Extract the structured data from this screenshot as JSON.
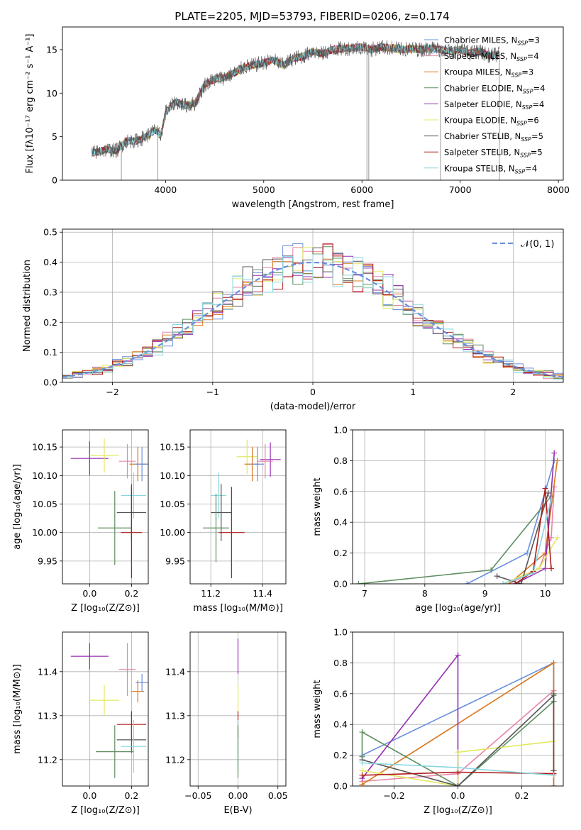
{
  "figure_title": "PLATE=2205, MJD=53793, FIBERID=0206, z=0.174",
  "colors": [
    "#6a8fdc",
    "#f08590",
    "#d9781f",
    "#98a8a0",
    "#5e8e60",
    "#952fb1",
    "#e3e860",
    "#555555",
    "#b01c1c",
    "#88d6df"
  ],
  "models": [
    {
      "name": "Chabrier MILES",
      "nssp": "3",
      "color": "#6a8fdc"
    },
    {
      "name": "Salpeter MILES",
      "nssp": "4",
      "color": "#e884a8"
    },
    {
      "name": "Kroupa MILES",
      "nssp": "3",
      "color": "#d9781f"
    },
    {
      "name": "Chabrier ELODIE",
      "nssp": "4",
      "color": "#5e8e60"
    },
    {
      "name": "Salpeter ELODIE",
      "nssp": "4",
      "color": "#952fb1"
    },
    {
      "name": "Kroupa ELODIE",
      "nssp": "6",
      "color": "#e3e860"
    },
    {
      "name": "Chabrier STELIB",
      "nssp": "5",
      "color": "#555555"
    },
    {
      "name": "Salpeter STELIB",
      "nssp": "5",
      "color": "#b01c1c"
    },
    {
      "name": "Kroupa STELIB",
      "nssp": "4",
      "color": "#88d6df"
    }
  ],
  "chart_data": [
    {
      "id": "spectrum",
      "type": "line",
      "xlabel": "wavelength [Angstrom, rest frame]",
      "ylabel": "Flux [fλ10⁻¹⁷ erg cm⁻² s⁻¹ A⁻¹]",
      "xlim": [
        2950,
        8050
      ],
      "ylim": [
        0,
        17.6
      ],
      "xticks": [
        4000,
        5000,
        6000,
        7000,
        8000
      ],
      "yticks": [
        0,
        5,
        10,
        15
      ],
      "data_color": "#555555",
      "x": [
        3250,
        3400,
        3500,
        3600,
        3700,
        3800,
        3900,
        3950,
        4000,
        4100,
        4200,
        4300,
        4400,
        4500,
        4600,
        4700,
        4800,
        4900,
        5000,
        5100,
        5200,
        5300,
        5400,
        5500,
        5600,
        5700,
        5800,
        5900,
        6000,
        6100,
        6200,
        6300,
        6400,
        6500,
        6600,
        6700,
        6800,
        6900,
        7000,
        7100,
        7200,
        7300,
        7400
      ],
      "y": [
        3.1,
        3.5,
        3.4,
        4.5,
        4.5,
        5.0,
        5.8,
        5.0,
        7.8,
        9.0,
        8.6,
        8.8,
        11.0,
        11.6,
        11.8,
        12.3,
        13.0,
        13.2,
        13.5,
        13.8,
        13.2,
        14.0,
        14.2,
        14.8,
        14.5,
        15.0,
        15.1,
        15.2,
        15.3,
        15.0,
        15.3,
        15.2,
        15.0,
        15.1,
        15.0,
        15.2,
        15.0,
        14.8,
        15.0,
        14.6,
        14.8,
        14.3,
        14.5
      ],
      "legend": "top-right"
    },
    {
      "id": "residuals",
      "type": "line",
      "xlabel": "(data-model)/error",
      "ylabel": "Normed distribution",
      "xlim": [
        -2.5,
        2.5
      ],
      "ylim": [
        0,
        0.51
      ],
      "xticks": [
        -2,
        -1,
        0,
        1,
        2
      ],
      "yticks": [
        0.0,
        0.1,
        0.2,
        0.3,
        0.4,
        0.5
      ],
      "grid": true,
      "legend": "top-right",
      "normal_label": "𝒩(0, 1)",
      "normal_color": "#6a8fdc",
      "hist_bins": 50
    },
    {
      "id": "age_vs_z",
      "type": "scatter",
      "xlabel": "Z [log₁₀(Z/Z⊙)]",
      "ylabel": "age  [log₁₀(age/yr)]",
      "xlim": [
        -0.13,
        0.28
      ],
      "ylim": [
        9.91,
        10.18
      ],
      "xticks": [
        0.0,
        0.2
      ],
      "yticks": [
        9.95,
        10.0,
        10.05,
        10.1,
        10.15
      ],
      "grid": true,
      "points": [
        {
          "x": 0.0,
          "y": 10.13,
          "ex": 0.09,
          "ey": 0.03,
          "color": "#952fb1"
        },
        {
          "x": 0.07,
          "y": 10.135,
          "ex": 0.07,
          "ey": 0.03,
          "color": "#e3e860"
        },
        {
          "x": 0.18,
          "y": 10.125,
          "ex": 0.04,
          "ey": 0.03,
          "color": "#e884a8"
        },
        {
          "x": 0.23,
          "y": 10.12,
          "ex": 0.04,
          "ey": 0.03,
          "color": "#d9781f"
        },
        {
          "x": 0.25,
          "y": 10.12,
          "ex": 0.03,
          "ey": 0.03,
          "color": "#6a8fdc"
        },
        {
          "x": 0.21,
          "y": 10.065,
          "ex": 0.06,
          "ey": 0.04,
          "color": "#88d6df"
        },
        {
          "x": 0.2,
          "y": 10.035,
          "ex": 0.07,
          "ey": 0.05,
          "color": "#555555"
        },
        {
          "x": 0.12,
          "y": 10.008,
          "ex": 0.08,
          "ey": 0.065,
          "color": "#5e8e60"
        },
        {
          "x": 0.2,
          "y": 10.0,
          "ex": 0.05,
          "ey": 0.08,
          "color": "#b01c1c"
        }
      ]
    },
    {
      "id": "age_vs_mass",
      "type": "scatter",
      "xlabel": "mass [log₁₀(M/M⊙)]",
      "ylabel": "",
      "xlim": [
        11.12,
        11.49
      ],
      "ylim": [
        9.91,
        10.18
      ],
      "xticks": [
        11.2,
        11.4
      ],
      "yticks": [
        9.95,
        10.0,
        10.05,
        10.1,
        10.15
      ],
      "grid": true,
      "points": [
        {
          "x": 11.43,
          "y": 10.128,
          "ex": 0.04,
          "ey": 0.03,
          "color": "#952fb1"
        },
        {
          "x": 11.34,
          "y": 10.133,
          "ex": 0.04,
          "ey": 0.03,
          "color": "#e3e860"
        },
        {
          "x": 11.41,
          "y": 10.125,
          "ex": 0.03,
          "ey": 0.03,
          "color": "#e884a8"
        },
        {
          "x": 11.36,
          "y": 10.12,
          "ex": 0.03,
          "ey": 0.03,
          "color": "#d9781f"
        },
        {
          "x": 11.38,
          "y": 10.12,
          "ex": 0.025,
          "ey": 0.03,
          "color": "#6a8fdc"
        },
        {
          "x": 11.23,
          "y": 10.065,
          "ex": 0.03,
          "ey": 0.04,
          "color": "#88d6df"
        },
        {
          "x": 11.24,
          "y": 10.035,
          "ex": 0.04,
          "ey": 0.05,
          "color": "#555555"
        },
        {
          "x": 11.22,
          "y": 10.008,
          "ex": 0.05,
          "ey": 0.06,
          "color": "#5e8e60"
        },
        {
          "x": 11.28,
          "y": 10.0,
          "ex": 0.05,
          "ey": 0.08,
          "color": "#b01c1c"
        }
      ]
    },
    {
      "id": "weight_vs_age",
      "type": "line",
      "xlabel": "age  [log₁₀(age/yr)]",
      "ylabel": "mass weight",
      "xlim": [
        6.8,
        10.3
      ],
      "ylim": [
        0,
        1.0
      ],
      "xticks": [
        7,
        8,
        9,
        10
      ],
      "yticks": [
        0.0,
        0.2,
        0.4,
        0.6,
        0.8,
        1.0
      ],
      "grid": true,
      "series": [
        {
          "color": "#6a8fdc",
          "x": [
            8.7,
            9.7,
            10.15
          ],
          "y": [
            0.0,
            0.2,
            0.8
          ]
        },
        {
          "color": "#e884a8",
          "x": [
            9.4,
            9.9,
            10.1,
            10.15
          ],
          "y": [
            0.0,
            0.1,
            0.3,
            0.63
          ]
        },
        {
          "color": "#d9781f",
          "x": [
            9.4,
            10.0,
            10.2
          ],
          "y": [
            0.0,
            0.2,
            0.8
          ]
        },
        {
          "color": "#5e8e60",
          "x": [
            6.9,
            9.1,
            10.1
          ],
          "y": [
            0.0,
            0.09,
            0.57
          ]
        },
        {
          "color": "#952fb1",
          "x": [
            9.5,
            10.0,
            10.15
          ],
          "y": [
            0.0,
            0.1,
            0.85
          ]
        },
        {
          "color": "#e3e860",
          "x": [
            9.3,
            9.9,
            10.2
          ],
          "y": [
            0.0,
            0.1,
            0.3
          ]
        },
        {
          "color": "#555555",
          "x": [
            9.2,
            9.6,
            10.05
          ],
          "y": [
            0.05,
            0.0,
            0.59
          ]
        },
        {
          "color": "#b01c1c",
          "x": [
            9.5,
            9.8,
            10.0,
            10.1
          ],
          "y": [
            0.0,
            0.08,
            0.62,
            0.1
          ]
        },
        {
          "color": "#88d6df",
          "x": [
            9.3,
            9.8,
            10.1
          ],
          "y": [
            0.0,
            0.07,
            0.55
          ]
        }
      ]
    },
    {
      "id": "mass_vs_z",
      "type": "scatter",
      "xlabel": "Z [log₁₀(Z/Z⊙)]",
      "ylabel": "mass [log₁₀(M/M⊙)]",
      "xlim": [
        -0.13,
        0.28
      ],
      "ylim": [
        11.14,
        11.49
      ],
      "xticks": [
        0.0,
        0.2
      ],
      "yticks": [
        11.2,
        11.3,
        11.4
      ],
      "grid": true,
      "points": [
        {
          "x": 0.0,
          "y": 11.435,
          "ex": 0.09,
          "ey": 0.03,
          "color": "#952fb1"
        },
        {
          "x": 0.07,
          "y": 11.335,
          "ex": 0.07,
          "ey": 0.035,
          "color": "#e3e860"
        },
        {
          "x": 0.18,
          "y": 11.405,
          "ex": 0.04,
          "ey": 0.06,
          "color": "#e884a8"
        },
        {
          "x": 0.23,
          "y": 11.355,
          "ex": 0.03,
          "ey": 0.025,
          "color": "#d9781f"
        },
        {
          "x": 0.25,
          "y": 11.375,
          "ex": 0.03,
          "ey": 0.02,
          "color": "#6a8fdc"
        },
        {
          "x": 0.2,
          "y": 11.28,
          "ex": 0.07,
          "ey": 0.03,
          "color": "#b01c1c"
        },
        {
          "x": 0.2,
          "y": 11.245,
          "ex": 0.07,
          "ey": 0.03,
          "color": "#555555"
        },
        {
          "x": 0.21,
          "y": 11.23,
          "ex": 0.06,
          "ey": 0.06,
          "color": "#88d6df"
        },
        {
          "x": 0.12,
          "y": 11.218,
          "ex": 0.09,
          "ey": 0.06,
          "color": "#5e8e60"
        }
      ]
    },
    {
      "id": "mass_vs_ebv",
      "type": "scatter",
      "xlabel": "E(B-V)",
      "ylabel": "",
      "xlim": [
        -0.06,
        0.06
      ],
      "ylim": [
        11.14,
        11.49
      ],
      "xticks": [
        -0.05,
        0.0,
        0.05
      ],
      "yticks": [
        11.2,
        11.3,
        11.4
      ],
      "grid": true,
      "points": [
        {
          "x": 0.0,
          "y": 11.435,
          "ey": 0.04,
          "color": "#952fb1"
        },
        {
          "x": 0.0,
          "y": 11.335,
          "ey": 0.035,
          "color": "#e3e860"
        },
        {
          "x": 0.0,
          "y": 11.28,
          "ey": 0.03,
          "color": "#b01c1c"
        },
        {
          "x": 0.0,
          "y": 11.23,
          "ey": 0.06,
          "color": "#88d6df"
        },
        {
          "x": 0.0,
          "y": 11.218,
          "ey": 0.06,
          "color": "#5e8e60"
        }
      ]
    },
    {
      "id": "weight_vs_z",
      "type": "line",
      "xlabel": "Z [log₁₀(Z/Z⊙)]",
      "ylabel": "mass weight",
      "xlim": [
        -0.33,
        0.33
      ],
      "ylim": [
        0,
        1.0
      ],
      "xticks": [
        -0.2,
        0.0,
        0.2
      ],
      "yticks": [
        0.0,
        0.2,
        0.4,
        0.6,
        0.8,
        1.0
      ],
      "grid": true,
      "series": [
        {
          "color": "#6a8fdc",
          "x": [
            -0.3,
            0.3,
            0.3
          ],
          "y": [
            0.2,
            0.8,
            0.0
          ]
        },
        {
          "color": "#e884a8",
          "x": [
            -0.3,
            0.0,
            0.3,
            0.3
          ],
          "y": [
            0.03,
            0.08,
            0.62,
            0.1
          ]
        },
        {
          "color": "#d9781f",
          "x": [
            -0.3,
            0.3,
            0.3
          ],
          "y": [
            0.01,
            0.8,
            0.0
          ]
        },
        {
          "color": "#5e8e60",
          "x": [
            -0.3,
            -0.3,
            0.0,
            0.3,
            0.3
          ],
          "y": [
            0.19,
            0.35,
            0.0,
            0.55,
            0.6
          ]
        },
        {
          "color": "#952fb1",
          "x": [
            -0.3,
            0.0,
            0.0
          ],
          "y": [
            0.05,
            0.85,
            0.0
          ]
        },
        {
          "color": "#e3e860",
          "x": [
            -0.3,
            0.0,
            0.0,
            0.3
          ],
          "y": [
            0.1,
            0.0,
            0.22,
            0.29
          ]
        },
        {
          "color": "#555555",
          "x": [
            -0.3,
            0.0,
            0.3,
            0.3
          ],
          "y": [
            0.17,
            0.0,
            0.59,
            0.1
          ]
        },
        {
          "color": "#b01c1c",
          "x": [
            -0.3,
            0.0,
            0.3
          ],
          "y": [
            0.07,
            0.09,
            0.08
          ]
        },
        {
          "color": "#88d6df",
          "x": [
            -0.3,
            0.0,
            0.3
          ],
          "y": [
            0.15,
            0.12,
            0.07
          ]
        }
      ]
    }
  ]
}
